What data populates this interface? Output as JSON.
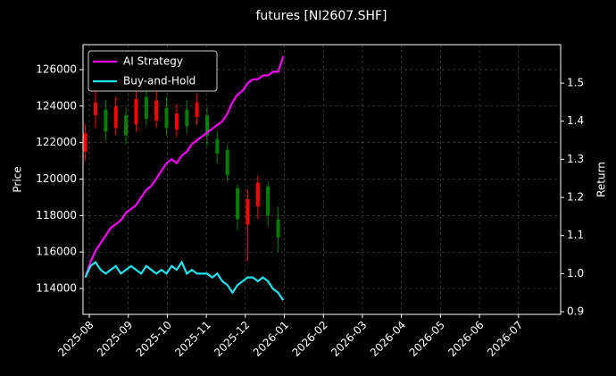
{
  "chart_data": {
    "type": "candlestick",
    "title": "futures [NI2607.SHF]",
    "ylabel": "Price",
    "y2label": "Return",
    "xlim": [
      6.84,
      19.08
    ],
    "xticks": [
      {
        "value": 7,
        "label": "2025-08"
      },
      {
        "value": 8,
        "label": "2025-09"
      },
      {
        "value": 9,
        "label": "2025-10"
      },
      {
        "value": 10,
        "label": "2025-11"
      },
      {
        "value": 11,
        "label": "2025-12"
      },
      {
        "value": 12,
        "label": "2026-01"
      },
      {
        "value": 13,
        "label": "2026-02"
      },
      {
        "value": 14,
        "label": "2026-03"
      },
      {
        "value": 15,
        "label": "2026-04"
      },
      {
        "value": 16,
        "label": "2026-05"
      },
      {
        "value": 17,
        "label": "2026-06"
      },
      {
        "value": 18,
        "label": "2026-07"
      }
    ],
    "ylim": [
      112580,
      127370
    ],
    "yticks": [
      114000,
      116000,
      118000,
      120000,
      122000,
      124000,
      126000
    ],
    "y2lim": [
      0.893,
      1.601
    ],
    "y2ticks": [
      0.9,
      {
        "value": 1,
        "label": "1.0"
      },
      1.1,
      1.2,
      1.3,
      1.4,
      1.5
    ],
    "grid": true,
    "legend": "upper left",
    "up_color": "#ff0000",
    "down_color": "#008000",
    "candles": {
      "x": [
        6.9,
        7.16,
        7.42,
        7.68,
        7.94,
        8.2,
        8.46,
        8.72,
        8.98,
        9.24,
        9.5,
        9.76,
        10.02,
        10.28,
        10.54,
        10.8,
        11.06,
        11.32,
        11.58,
        11.84
      ],
      "open": [
        121500,
        123500,
        123800,
        122800,
        123500,
        123000,
        124500,
        123200,
        123900,
        122700,
        123800,
        123400,
        123500,
        122200,
        121600,
        119500,
        117500,
        118500,
        119600,
        117800
      ],
      "high": [
        123000,
        124800,
        124300,
        124500,
        123900,
        124900,
        125000,
        124800,
        124500,
        124100,
        124300,
        124700,
        123900,
        122600,
        121900,
        119700,
        119400,
        120200,
        119900,
        118500
      ],
      "low": [
        121000,
        122800,
        122100,
        122400,
        121900,
        122600,
        122900,
        122800,
        122400,
        122300,
        122500,
        123000,
        121800,
        120900,
        119900,
        117200,
        115500,
        117800,
        117400,
        116000
      ],
      "close": [
        122500,
        124200,
        122600,
        124000,
        122400,
        124400,
        123300,
        124300,
        122800,
        123600,
        122900,
        124200,
        122400,
        121400,
        120200,
        117800,
        118900,
        119800,
        118000,
        116800
      ]
    },
    "series": [
      {
        "name": "AI Strategy",
        "color": "#ff00ff",
        "axis": "y2",
        "x": [
          6.9,
          7.03,
          7.16,
          7.29,
          7.42,
          7.55,
          7.68,
          7.81,
          7.94,
          8.07,
          8.2,
          8.33,
          8.46,
          8.59,
          8.72,
          8.85,
          8.98,
          9.11,
          9.24,
          9.37,
          9.5,
          9.63,
          9.76,
          9.89,
          10.02,
          10.15,
          10.28,
          10.41,
          10.54,
          10.67,
          10.8,
          10.93,
          11.06,
          11.19,
          11.32,
          11.45,
          11.58,
          11.71,
          11.84,
          11.97
        ],
        "values": [
          0.99,
          1.03,
          1.06,
          1.08,
          1.1,
          1.12,
          1.13,
          1.14,
          1.16,
          1.17,
          1.18,
          1.2,
          1.22,
          1.23,
          1.25,
          1.27,
          1.29,
          1.3,
          1.29,
          1.31,
          1.32,
          1.34,
          1.35,
          1.36,
          1.37,
          1.38,
          1.39,
          1.4,
          1.42,
          1.45,
          1.47,
          1.48,
          1.5,
          1.51,
          1.51,
          1.52,
          1.52,
          1.53,
          1.53,
          1.57
        ]
      },
      {
        "name": "Buy-and-Hold",
        "color": "#22e5ee",
        "axis": "y2",
        "x": [
          6.9,
          7.03,
          7.16,
          7.29,
          7.42,
          7.55,
          7.68,
          7.81,
          7.94,
          8.07,
          8.2,
          8.33,
          8.46,
          8.59,
          8.72,
          8.85,
          8.98,
          9.11,
          9.24,
          9.37,
          9.5,
          9.63,
          9.76,
          9.89,
          10.02,
          10.15,
          10.28,
          10.41,
          10.54,
          10.67,
          10.8,
          10.93,
          11.06,
          11.19,
          11.32,
          11.45,
          11.58,
          11.71,
          11.84,
          11.97
        ],
        "values": [
          0.99,
          1.02,
          1.03,
          1.01,
          1.0,
          1.01,
          1.02,
          1.0,
          1.01,
          1.02,
          1.01,
          1.0,
          1.02,
          1.01,
          1.0,
          1.01,
          1.0,
          1.02,
          1.01,
          1.03,
          1.0,
          1.01,
          1.0,
          1.0,
          1.0,
          0.99,
          1.0,
          0.98,
          0.97,
          0.95,
          0.97,
          0.98,
          0.99,
          0.99,
          0.98,
          0.99,
          0.98,
          0.96,
          0.95,
          0.93
        ]
      }
    ]
  }
}
